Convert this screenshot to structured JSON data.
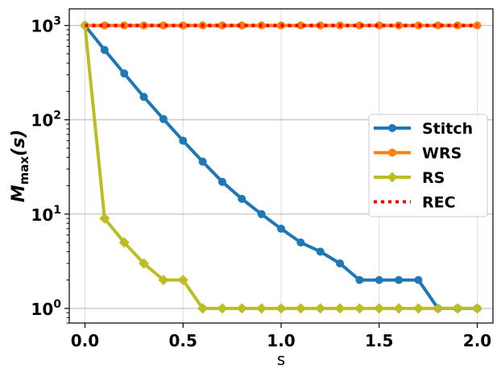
{
  "chart_data": {
    "type": "line",
    "xlabel": "s",
    "ylabel_main": "M",
    "ylabel_sub": "max",
    "ylabel_arg": "(s)",
    "yscale": "log",
    "xlim": [
      -0.08,
      2.08
    ],
    "ylim": [
      0.7,
      1500
    ],
    "grid": true,
    "legend_position": "center-right",
    "x_ticks": [
      {
        "value": 0.0,
        "label": "0.0"
      },
      {
        "value": 0.5,
        "label": "0.5"
      },
      {
        "value": 1.0,
        "label": "1.0"
      },
      {
        "value": 1.5,
        "label": "1.5"
      },
      {
        "value": 2.0,
        "label": "2.0"
      }
    ],
    "y_ticks": [
      {
        "value": 1,
        "base": "10",
        "exp": "0"
      },
      {
        "value": 10,
        "base": "10",
        "exp": "1"
      },
      {
        "value": 100,
        "base": "10",
        "exp": "2"
      },
      {
        "value": 1000,
        "base": "10",
        "exp": "3"
      }
    ],
    "x": [
      0.0,
      0.1,
      0.2,
      0.3,
      0.4,
      0.5,
      0.6,
      0.7,
      0.8,
      0.9,
      1.0,
      1.1,
      1.2,
      1.3,
      1.4,
      1.5,
      1.6,
      1.7,
      1.8,
      1.9,
      2.0
    ],
    "series": [
      {
        "name": "Stitch",
        "color": "#1f77b4",
        "marker": "circle",
        "line": "solid",
        "values": [
          1000,
          550,
          310,
          175,
          102,
          60,
          36,
          22,
          14.5,
          10,
          7,
          5,
          4,
          3,
          2,
          2,
          2,
          2,
          1,
          1,
          1
        ]
      },
      {
        "name": "WRS",
        "color": "#ff7f0e",
        "marker": "circle",
        "line": "solid",
        "values": [
          1000,
          1000,
          1000,
          1000,
          1000,
          1000,
          1000,
          1000,
          1000,
          1000,
          1000,
          1000,
          1000,
          1000,
          1000,
          1000,
          1000,
          1000,
          1000,
          1000,
          1000
        ]
      },
      {
        "name": "RS",
        "color": "#bcbd22",
        "marker": "diamond",
        "line": "solid",
        "values": [
          1000,
          9,
          5,
          3,
          2,
          2,
          1,
          1,
          1,
          1,
          1,
          1,
          1,
          1,
          1,
          1,
          1,
          1,
          1,
          1,
          1
        ]
      },
      {
        "name": "REC",
        "color": "#ff0000",
        "marker": "none",
        "line": "dotted",
        "values": [
          1000,
          1000,
          1000,
          1000,
          1000,
          1000,
          1000,
          1000,
          1000,
          1000,
          1000,
          1000,
          1000,
          1000,
          1000,
          1000,
          1000,
          1000,
          1000,
          1000,
          1000
        ]
      }
    ]
  }
}
